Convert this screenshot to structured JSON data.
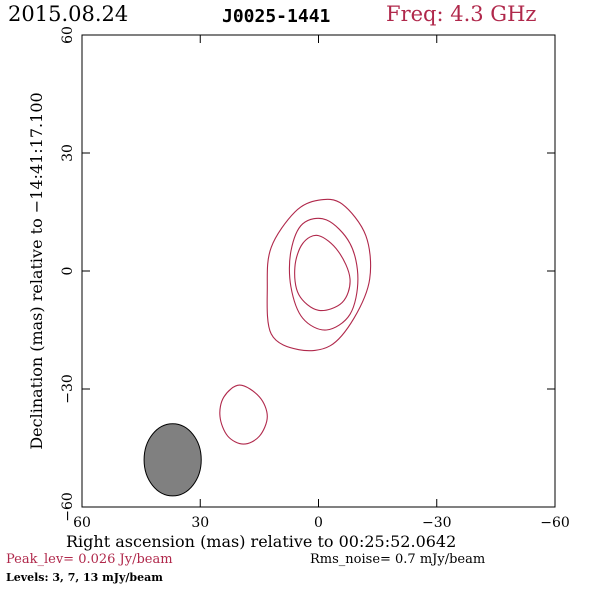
{
  "header": {
    "date": "2015.08.24",
    "source": "J0025-1441",
    "freq": "Freq: 4.3 GHz"
  },
  "footer": {
    "peak": "Peak_lev=  0.026 Jy/beam",
    "rms": "Rms_noise=  0.7 mJy/beam",
    "levels": "Levels:   3,   7,  13 mJy/beam"
  },
  "colors": {
    "contour": "#b0284b",
    "beam_fill": "#808080"
  },
  "chart_data": {
    "type": "contour",
    "xlabel": "Right ascension (mas) relative to 00:25:52.0642",
    "ylabel": "Declination (mas) relative to −14:41:17.100",
    "xlim": [
      60,
      -60
    ],
    "ylim": [
      -60,
      60
    ],
    "xticks": [
      60,
      30,
      0,
      -30,
      -60
    ],
    "yticks": [
      -60,
      -30,
      0,
      30,
      60
    ],
    "xtick_labels": [
      "60",
      "30",
      "0",
      "−30",
      "−60"
    ],
    "ytick_labels": [
      "−60",
      "−30",
      "0",
      "30",
      "60"
    ],
    "contour_levels_mJy": [
      3,
      7,
      13
    ],
    "contours": [
      {
        "level": 3,
        "points": [
          [
            -6,
            17
          ],
          [
            -12,
            9
          ],
          [
            -13,
            -2
          ],
          [
            -9,
            -12
          ],
          [
            -3,
            -19
          ],
          [
            5,
            -20
          ],
          [
            12,
            -16
          ],
          [
            13,
            -4
          ],
          [
            12,
            6
          ],
          [
            6,
            15
          ],
          [
            0,
            18
          ]
        ]
      },
      {
        "level": 7,
        "points": [
          [
            -2,
            13
          ],
          [
            -8,
            7
          ],
          [
            -10,
            -2
          ],
          [
            -8,
            -11
          ],
          [
            -2,
            -15
          ],
          [
            4,
            -12
          ],
          [
            7,
            -4
          ],
          [
            7,
            5
          ],
          [
            4,
            12
          ]
        ]
      },
      {
        "level": 13,
        "points": [
          [
            0,
            9
          ],
          [
            -5,
            5
          ],
          [
            -8,
            -2
          ],
          [
            -6,
            -8
          ],
          [
            0,
            -10
          ],
          [
            5,
            -6
          ],
          [
            6,
            1
          ],
          [
            4,
            7
          ]
        ]
      },
      {
        "level": 3,
        "points": [
          [
            20,
            -29
          ],
          [
            24,
            -32
          ],
          [
            25,
            -37
          ],
          [
            23,
            -42
          ],
          [
            19,
            -44
          ],
          [
            15,
            -42
          ],
          [
            13,
            -37
          ],
          [
            15,
            -32
          ]
        ]
      }
    ],
    "beam": {
      "x": 37,
      "y": -48,
      "major": 18.3,
      "minor": 14.5,
      "pa": 0
    }
  }
}
